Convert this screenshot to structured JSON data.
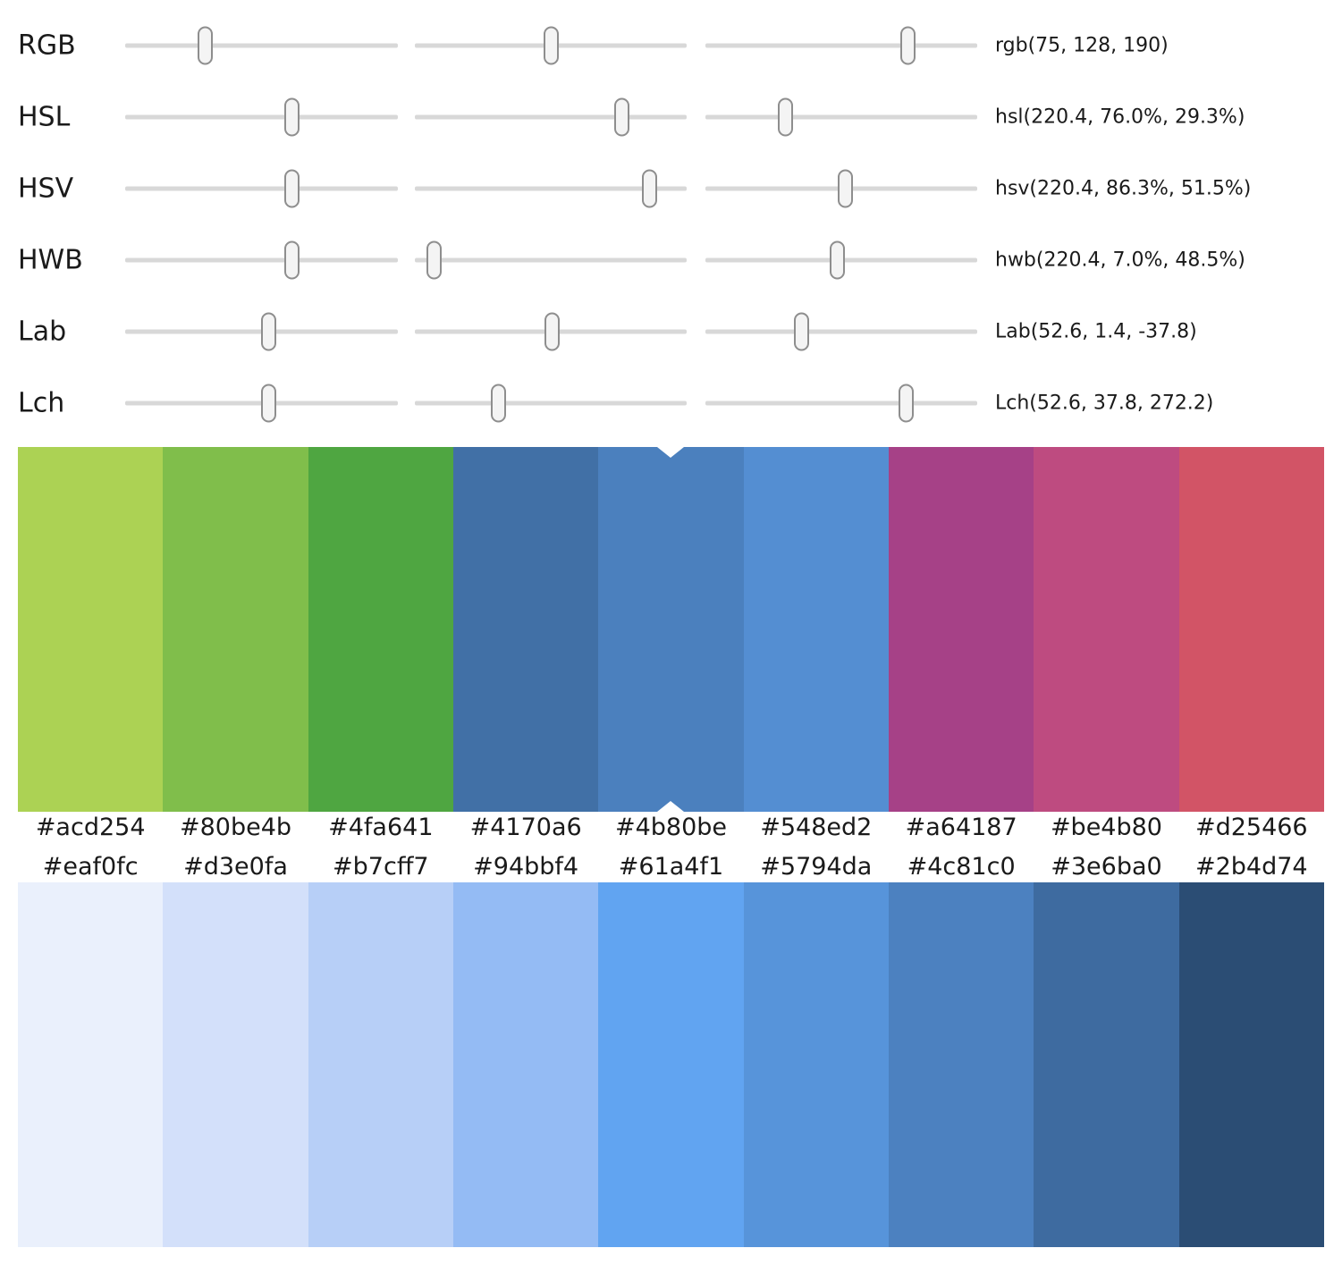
{
  "sliders": {
    "rows": [
      {
        "label": "RGB",
        "value_text": "rgb(75, 128, 190)",
        "thumb_fractions": [
          0.294,
          0.502,
          0.745
        ]
      },
      {
        "label": "HSL",
        "value_text": "hsl(220.4, 76.0%, 29.3%)",
        "thumb_fractions": [
          0.612,
          0.76,
          0.293
        ]
      },
      {
        "label": "HSV",
        "value_text": "hsv(220.4, 86.3%, 51.5%)",
        "thumb_fractions": [
          0.612,
          0.863,
          0.515
        ]
      },
      {
        "label": "HWB",
        "value_text": "hwb(220.4, 7.0%, 48.5%)",
        "thumb_fractions": [
          0.612,
          0.07,
          0.485
        ]
      },
      {
        "label": "Lab",
        "value_text": "Lab(52.6, 1.4, -37.8)",
        "thumb_fractions": [
          0.526,
          0.505,
          0.352
        ]
      },
      {
        "label": "Lch",
        "value_text": "Lch(52.6, 37.8, 272.2)",
        "thumb_fractions": [
          0.526,
          0.306,
          0.74
        ]
      }
    ]
  },
  "palette_top": {
    "selected_index": 4,
    "swatches": [
      "#acd254",
      "#80be4b",
      "#4fa641",
      "#4170a6",
      "#4b80be",
      "#548ed2",
      "#a64187",
      "#be4b80",
      "#d25466"
    ]
  },
  "palette_bottom": {
    "swatches": [
      "#eaf0fc",
      "#d3e0fa",
      "#b7cff7",
      "#94bbf4",
      "#61a4f1",
      "#5794da",
      "#4c81c0",
      "#3e6ba0",
      "#2b4d74"
    ]
  },
  "colors": {
    "track": "#d8d8d8",
    "thumb_fill": "#f4f4f4",
    "thumb_border": "#8e8e8e",
    "text": "#1a1a1a",
    "background": "#ffffff"
  }
}
